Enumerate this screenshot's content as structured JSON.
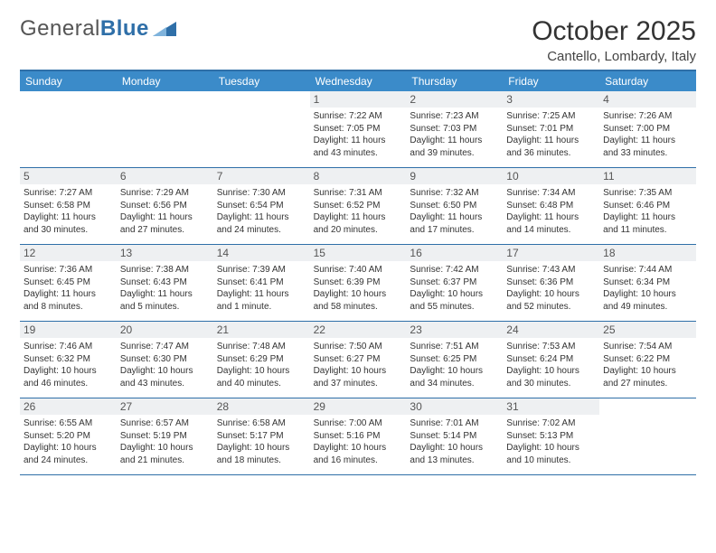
{
  "logo": {
    "part1": "General",
    "part2": "Blue"
  },
  "title": "October 2025",
  "location": "Cantello, Lombardy, Italy",
  "day_names": [
    "Sunday",
    "Monday",
    "Tuesday",
    "Wednesday",
    "Thursday",
    "Friday",
    "Saturday"
  ],
  "colors": {
    "header_bg": "#3b8bc9",
    "border": "#2f6fa8",
    "daynum_bg": "#eef0f2",
    "text": "#333333"
  },
  "weeks": [
    [
      null,
      null,
      null,
      {
        "n": "1",
        "sr": "7:22 AM",
        "ss": "7:05 PM",
        "dl": "11 hours and 43 minutes."
      },
      {
        "n": "2",
        "sr": "7:23 AM",
        "ss": "7:03 PM",
        "dl": "11 hours and 39 minutes."
      },
      {
        "n": "3",
        "sr": "7:25 AM",
        "ss": "7:01 PM",
        "dl": "11 hours and 36 minutes."
      },
      {
        "n": "4",
        "sr": "7:26 AM",
        "ss": "7:00 PM",
        "dl": "11 hours and 33 minutes."
      }
    ],
    [
      {
        "n": "5",
        "sr": "7:27 AM",
        "ss": "6:58 PM",
        "dl": "11 hours and 30 minutes."
      },
      {
        "n": "6",
        "sr": "7:29 AM",
        "ss": "6:56 PM",
        "dl": "11 hours and 27 minutes."
      },
      {
        "n": "7",
        "sr": "7:30 AM",
        "ss": "6:54 PM",
        "dl": "11 hours and 24 minutes."
      },
      {
        "n": "8",
        "sr": "7:31 AM",
        "ss": "6:52 PM",
        "dl": "11 hours and 20 minutes."
      },
      {
        "n": "9",
        "sr": "7:32 AM",
        "ss": "6:50 PM",
        "dl": "11 hours and 17 minutes."
      },
      {
        "n": "10",
        "sr": "7:34 AM",
        "ss": "6:48 PM",
        "dl": "11 hours and 14 minutes."
      },
      {
        "n": "11",
        "sr": "7:35 AM",
        "ss": "6:46 PM",
        "dl": "11 hours and 11 minutes."
      }
    ],
    [
      {
        "n": "12",
        "sr": "7:36 AM",
        "ss": "6:45 PM",
        "dl": "11 hours and 8 minutes."
      },
      {
        "n": "13",
        "sr": "7:38 AM",
        "ss": "6:43 PM",
        "dl": "11 hours and 5 minutes."
      },
      {
        "n": "14",
        "sr": "7:39 AM",
        "ss": "6:41 PM",
        "dl": "11 hours and 1 minute."
      },
      {
        "n": "15",
        "sr": "7:40 AM",
        "ss": "6:39 PM",
        "dl": "10 hours and 58 minutes."
      },
      {
        "n": "16",
        "sr": "7:42 AM",
        "ss": "6:37 PM",
        "dl": "10 hours and 55 minutes."
      },
      {
        "n": "17",
        "sr": "7:43 AM",
        "ss": "6:36 PM",
        "dl": "10 hours and 52 minutes."
      },
      {
        "n": "18",
        "sr": "7:44 AM",
        "ss": "6:34 PM",
        "dl": "10 hours and 49 minutes."
      }
    ],
    [
      {
        "n": "19",
        "sr": "7:46 AM",
        "ss": "6:32 PM",
        "dl": "10 hours and 46 minutes."
      },
      {
        "n": "20",
        "sr": "7:47 AM",
        "ss": "6:30 PM",
        "dl": "10 hours and 43 minutes."
      },
      {
        "n": "21",
        "sr": "7:48 AM",
        "ss": "6:29 PM",
        "dl": "10 hours and 40 minutes."
      },
      {
        "n": "22",
        "sr": "7:50 AM",
        "ss": "6:27 PM",
        "dl": "10 hours and 37 minutes."
      },
      {
        "n": "23",
        "sr": "7:51 AM",
        "ss": "6:25 PM",
        "dl": "10 hours and 34 minutes."
      },
      {
        "n": "24",
        "sr": "7:53 AM",
        "ss": "6:24 PM",
        "dl": "10 hours and 30 minutes."
      },
      {
        "n": "25",
        "sr": "7:54 AM",
        "ss": "6:22 PM",
        "dl": "10 hours and 27 minutes."
      }
    ],
    [
      {
        "n": "26",
        "sr": "6:55 AM",
        "ss": "5:20 PM",
        "dl": "10 hours and 24 minutes."
      },
      {
        "n": "27",
        "sr": "6:57 AM",
        "ss": "5:19 PM",
        "dl": "10 hours and 21 minutes."
      },
      {
        "n": "28",
        "sr": "6:58 AM",
        "ss": "5:17 PM",
        "dl": "10 hours and 18 minutes."
      },
      {
        "n": "29",
        "sr": "7:00 AM",
        "ss": "5:16 PM",
        "dl": "10 hours and 16 minutes."
      },
      {
        "n": "30",
        "sr": "7:01 AM",
        "ss": "5:14 PM",
        "dl": "10 hours and 13 minutes."
      },
      {
        "n": "31",
        "sr": "7:02 AM",
        "ss": "5:13 PM",
        "dl": "10 hours and 10 minutes."
      },
      null
    ]
  ],
  "labels": {
    "sunrise": "Sunrise: ",
    "sunset": "Sunset: ",
    "daylight": "Daylight: "
  }
}
